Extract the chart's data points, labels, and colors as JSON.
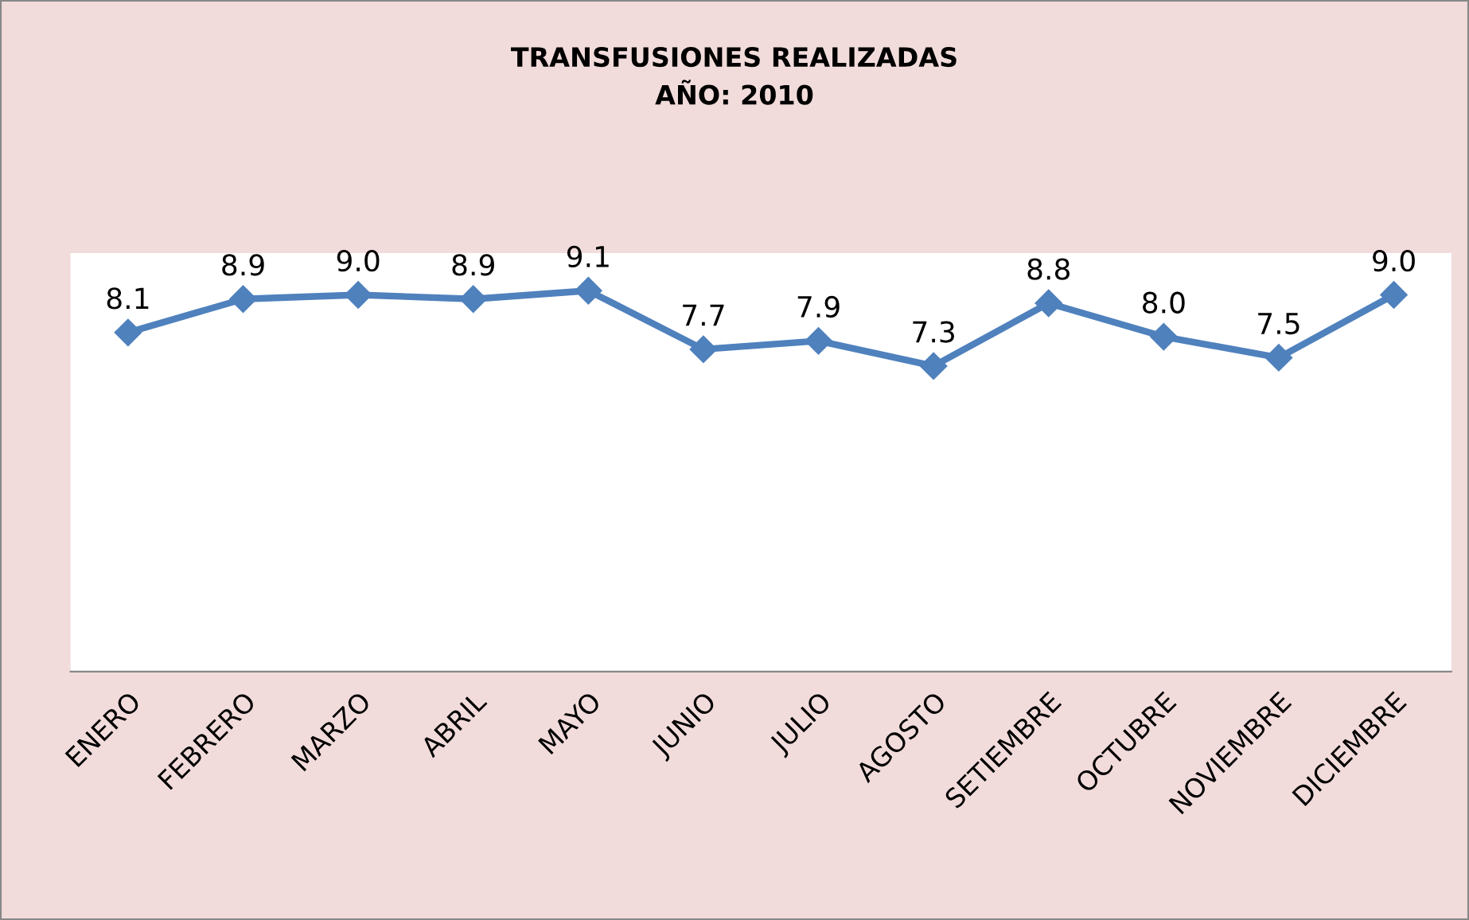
{
  "chart_data": {
    "type": "line",
    "title": "TRANSFUSIONES REALIZADAS\nAÑO: 2010",
    "categories": [
      "ENERO",
      "FEBRERO",
      "MARZO",
      "ABRIL",
      "MAYO",
      "JUNIO",
      "JULIO",
      "AGOSTO",
      "SETIEMBRE",
      "OCTUBRE",
      "NOVIEMBRE",
      "DICIEMBRE"
    ],
    "series": [
      {
        "color": "#4f81bd",
        "values": [
          8.1,
          8.9,
          9.0,
          8.9,
          9.1,
          7.7,
          7.9,
          7.3,
          8.8,
          8.0,
          7.5,
          9.0
        ],
        "value_labels": [
          "8.1",
          "8.9",
          "9.0",
          "8.9",
          "9.1",
          "7.7",
          "7.9",
          "7.3",
          "8.8",
          "8.0",
          "7.5",
          "9.0"
        ]
      }
    ],
    "ylim": [
      0,
      10
    ],
    "tick_labels": "x",
    "marker": "diamond",
    "line_style": "solid",
    "grid": false,
    "legend": false
  }
}
